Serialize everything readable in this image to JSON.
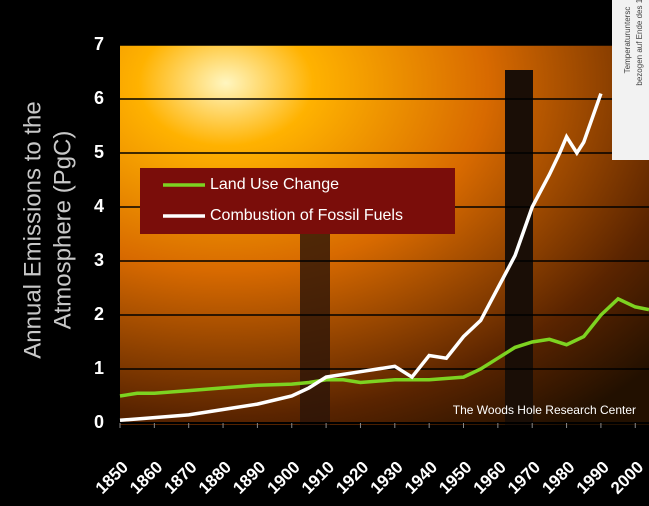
{
  "chart_data": {
    "type": "line",
    "y_label": [
      "Annual Emissions to the",
      "Atmosphere (PgC)"
    ],
    "credit": "The Woods Hole Research Center",
    "inset_text": [
      "Temperaturuntersc",
      "bezogen auf Ende des 19"
    ],
    "xlim": [
      1850,
      2004
    ],
    "ylim": [
      0,
      7
    ],
    "xticks": [
      1850,
      1860,
      1870,
      1880,
      1890,
      1900,
      1910,
      1920,
      1930,
      1940,
      1950,
      1960,
      1970,
      1980,
      1990,
      2000
    ],
    "yticks": [
      0,
      1,
      2,
      3,
      4,
      5,
      6,
      7
    ],
    "grid": true,
    "series": [
      {
        "name": "Land Use Change",
        "color": "#7dd321",
        "x": [
          1850,
          1855,
          1860,
          1870,
          1880,
          1890,
          1900,
          1905,
          1910,
          1915,
          1920,
          1930,
          1940,
          1950,
          1955,
          1960,
          1965,
          1970,
          1975,
          1980,
          1985,
          1990,
          1995,
          2000,
          2004
        ],
        "values": [
          0.5,
          0.55,
          0.55,
          0.6,
          0.65,
          0.7,
          0.72,
          0.75,
          0.8,
          0.8,
          0.75,
          0.8,
          0.8,
          0.85,
          1.0,
          1.2,
          1.4,
          1.5,
          1.55,
          1.45,
          1.6,
          2.0,
          2.3,
          2.15,
          2.1
        ]
      },
      {
        "name": "Combustion of Fossil Fuels",
        "color": "#ffffff",
        "x": [
          1850,
          1860,
          1870,
          1880,
          1890,
          1900,
          1905,
          1910,
          1915,
          1920,
          1925,
          1930,
          1935,
          1940,
          1945,
          1950,
          1955,
          1960,
          1965,
          1970,
          1975,
          1978,
          1980,
          1983,
          1985,
          1990
        ],
        "values": [
          0.05,
          0.1,
          0.15,
          0.25,
          0.35,
          0.5,
          0.65,
          0.85,
          0.9,
          0.95,
          1.0,
          1.05,
          0.85,
          1.25,
          1.2,
          1.6,
          1.9,
          2.5,
          3.1,
          4.0,
          4.6,
          5.0,
          5.3,
          5.0,
          5.2,
          6.1
        ]
      }
    ]
  }
}
